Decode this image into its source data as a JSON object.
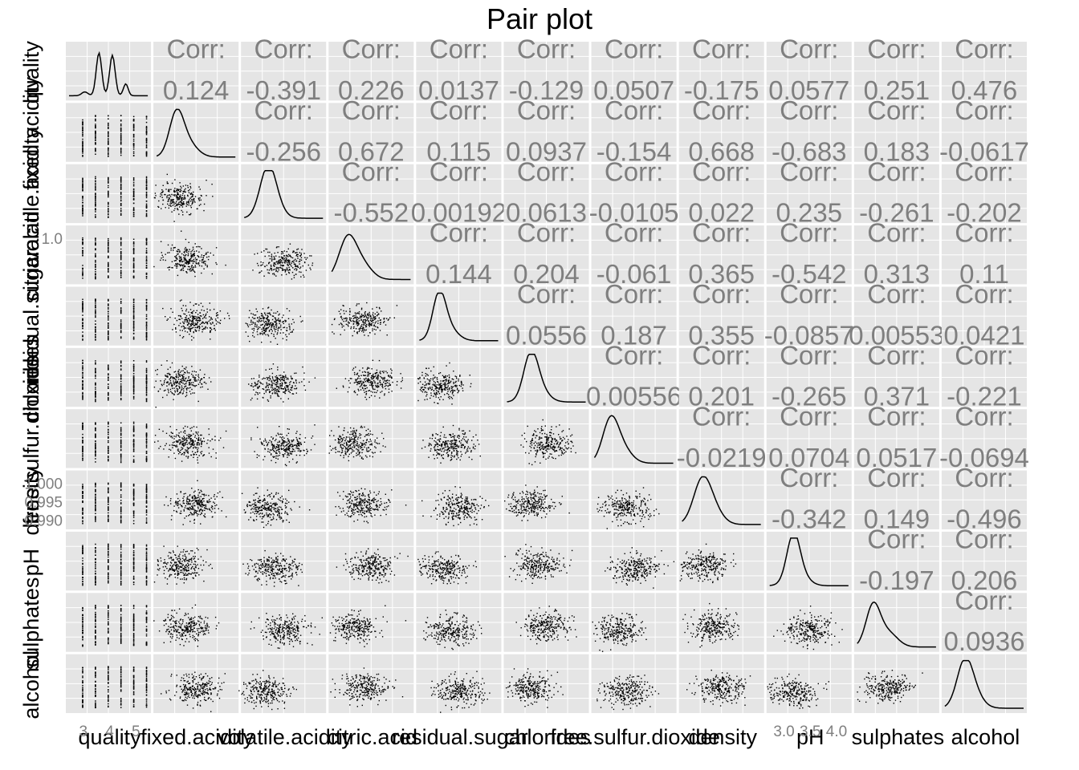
{
  "chart_data": {
    "type": "scatter",
    "title": "Pair plot",
    "corr_label": "Corr:",
    "variables": [
      "quality",
      "fixed.acidity",
      "volatile.acidity",
      "citric.acid",
      "residual.sugar",
      "chlorides",
      "free.sulfur.dioxide",
      "density",
      "pH",
      "sulphates",
      "alcohol"
    ],
    "correlations": [
      {
        "row": 0,
        "col": 1,
        "value": "0.124"
      },
      {
        "row": 0,
        "col": 2,
        "value": "-0.391"
      },
      {
        "row": 0,
        "col": 3,
        "value": "0.226"
      },
      {
        "row": 0,
        "col": 4,
        "value": "0.0137"
      },
      {
        "row": 0,
        "col": 5,
        "value": "-0.129"
      },
      {
        "row": 0,
        "col": 6,
        "value": "0.0507"
      },
      {
        "row": 0,
        "col": 7,
        "value": "-0.175"
      },
      {
        "row": 0,
        "col": 8,
        "value": "0.0577"
      },
      {
        "row": 0,
        "col": 9,
        "value": "0.251"
      },
      {
        "row": 0,
        "col": 10,
        "value": "0.476"
      },
      {
        "row": 1,
        "col": 2,
        "value": "-0.256"
      },
      {
        "row": 1,
        "col": 3,
        "value": "0.672"
      },
      {
        "row": 1,
        "col": 4,
        "value": "0.115"
      },
      {
        "row": 1,
        "col": 5,
        "value": "0.0937"
      },
      {
        "row": 1,
        "col": 6,
        "value": "-0.154"
      },
      {
        "row": 1,
        "col": 7,
        "value": "0.668"
      },
      {
        "row": 1,
        "col": 8,
        "value": "-0.683"
      },
      {
        "row": 1,
        "col": 9,
        "value": "0.183"
      },
      {
        "row": 1,
        "col": 10,
        "value": "-0.0617"
      },
      {
        "row": 2,
        "col": 3,
        "value": "-0.552"
      },
      {
        "row": 2,
        "col": 4,
        "value": "0.00192"
      },
      {
        "row": 2,
        "col": 5,
        "value": "0.0613"
      },
      {
        "row": 2,
        "col": 6,
        "value": "-0.0105"
      },
      {
        "row": 2,
        "col": 7,
        "value": "0.022"
      },
      {
        "row": 2,
        "col": 8,
        "value": "0.235"
      },
      {
        "row": 2,
        "col": 9,
        "value": "-0.261"
      },
      {
        "row": 2,
        "col": 10,
        "value": "-0.202"
      },
      {
        "row": 3,
        "col": 4,
        "value": "0.144"
      },
      {
        "row": 3,
        "col": 5,
        "value": "0.204"
      },
      {
        "row": 3,
        "col": 6,
        "value": "-0.061"
      },
      {
        "row": 3,
        "col": 7,
        "value": "0.365"
      },
      {
        "row": 3,
        "col": 8,
        "value": "-0.542"
      },
      {
        "row": 3,
        "col": 9,
        "value": "0.313"
      },
      {
        "row": 3,
        "col": 10,
        "value": "0.11"
      },
      {
        "row": 4,
        "col": 5,
        "value": "0.0556"
      },
      {
        "row": 4,
        "col": 6,
        "value": "0.187"
      },
      {
        "row": 4,
        "col": 7,
        "value": "0.355"
      },
      {
        "row": 4,
        "col": 8,
        "value": "-0.0857"
      },
      {
        "row": 4,
        "col": 9,
        "value": "0.00553"
      },
      {
        "row": 4,
        "col": 10,
        "value": "0.0421"
      },
      {
        "row": 5,
        "col": 6,
        "value": "0.00556"
      },
      {
        "row": 5,
        "col": 7,
        "value": "0.201"
      },
      {
        "row": 5,
        "col": 8,
        "value": "-0.265"
      },
      {
        "row": 5,
        "col": 9,
        "value": "0.371"
      },
      {
        "row": 5,
        "col": 10,
        "value": "-0.221"
      },
      {
        "row": 6,
        "col": 7,
        "value": "-0.0219"
      },
      {
        "row": 6,
        "col": 8,
        "value": "0.0704"
      },
      {
        "row": 6,
        "col": 9,
        "value": "0.0517"
      },
      {
        "row": 6,
        "col": 10,
        "value": "-0.0694"
      },
      {
        "row": 7,
        "col": 8,
        "value": "-0.342"
      },
      {
        "row": 7,
        "col": 9,
        "value": "0.149"
      },
      {
        "row": 7,
        "col": 10,
        "value": "-0.496"
      },
      {
        "row": 8,
        "col": 9,
        "value": "-0.197"
      },
      {
        "row": 8,
        "col": 10,
        "value": "0.206"
      },
      {
        "row": 9,
        "col": 10,
        "value": "0.0936"
      }
    ],
    "y_tick_labels": [
      {
        "row": 7,
        "labels": [
          "1.000",
          "0.995",
          "0.990"
        ]
      },
      {
        "row": 3,
        "labels": [
          "1.0"
        ]
      }
    ],
    "x_tick_labels": [
      {
        "col": 0,
        "labels": [
          "3",
          "4",
          "5"
        ]
      },
      {
        "col": 8,
        "labels": [
          "3.0",
          "3.5",
          "4.0"
        ]
      }
    ],
    "grid": true,
    "legend": "none"
  }
}
